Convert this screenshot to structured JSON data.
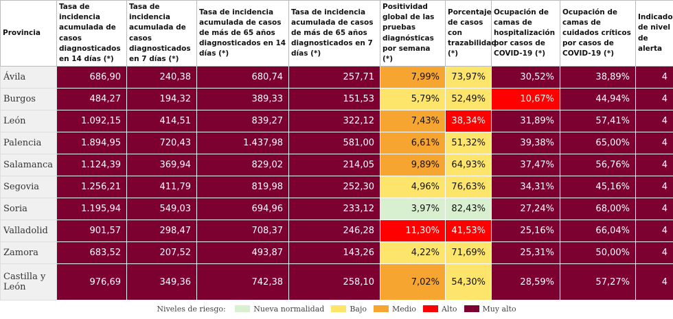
{
  "table": {
    "headers": [
      "Provincia",
      "Tasa de incidencia acumulada de casos diagnosticados en 14 días (*)",
      "Tasa de incidencia acumulada de casos diagnosticados en 7 días (*)",
      "Tasa de incidencia acumulada de casos de más de 65 años diagnosticados en 14 días (*)",
      "Tasa de incidencia acumulada de casos de más de 65 años diagnosticados en 7 días (*)",
      "Positividad global de las pruebas diagnósticas por semana (*)",
      "Porcentaje de casos con trazabilidad (*)",
      "Ocupación de camas de hospitalización por casos de COVID-19 (*)",
      "Ocupación de camas de cuidados críticos por casos de COVID-19 (*)",
      "Indicador de nivel de alerta"
    ],
    "rows": [
      {
        "province": "Ávila",
        "cells": [
          "686,90",
          "240,38",
          "680,74",
          "257,71",
          "7,99%",
          "73,97%",
          "30,52%",
          "38,89%",
          "4"
        ],
        "levels": [
          4,
          4,
          4,
          4,
          2,
          1,
          4,
          4,
          4
        ]
      },
      {
        "province": "Burgos",
        "cells": [
          "484,27",
          "194,32",
          "389,33",
          "151,53",
          "5,79%",
          "52,49%",
          "10,67%",
          "44,94%",
          "4"
        ],
        "levels": [
          4,
          4,
          4,
          4,
          1,
          1,
          3,
          4,
          4
        ]
      },
      {
        "province": "León",
        "cells": [
          "1.092,15",
          "414,51",
          "839,27",
          "322,12",
          "7,43%",
          "38,34%",
          "31,89%",
          "57,41%",
          "4"
        ],
        "levels": [
          4,
          4,
          4,
          4,
          2,
          3,
          4,
          4,
          4
        ]
      },
      {
        "province": "Palencia",
        "cells": [
          "1.894,95",
          "720,43",
          "1.437,98",
          "581,00",
          "6,61%",
          "51,32%",
          "39,38%",
          "65,00%",
          "4"
        ],
        "levels": [
          4,
          4,
          4,
          4,
          2,
          1,
          4,
          4,
          4
        ]
      },
      {
        "province": "Salamanca",
        "cells": [
          "1.124,39",
          "369,94",
          "829,02",
          "214,05",
          "9,89%",
          "64,93%",
          "37,47%",
          "56,76%",
          "4"
        ],
        "levels": [
          4,
          4,
          4,
          4,
          2,
          1,
          4,
          4,
          4
        ]
      },
      {
        "province": "Segovia",
        "cells": [
          "1.256,21",
          "411,79",
          "819,98",
          "252,30",
          "4,96%",
          "76,63%",
          "34,31%",
          "45,16%",
          "4"
        ],
        "levels": [
          4,
          4,
          4,
          4,
          1,
          1,
          4,
          4,
          4
        ]
      },
      {
        "province": "Soria",
        "cells": [
          "1.195,94",
          "549,03",
          "694,96",
          "233,12",
          "3,97%",
          "82,43%",
          "27,24%",
          "68,00%",
          "4"
        ],
        "levels": [
          4,
          4,
          4,
          4,
          0,
          0,
          4,
          4,
          4
        ]
      },
      {
        "province": "Valladolid",
        "cells": [
          "901,57",
          "298,47",
          "708,37",
          "246,28",
          "11,30%",
          "41,53%",
          "25,16%",
          "66,04%",
          "4"
        ],
        "levels": [
          4,
          4,
          4,
          4,
          3,
          3,
          4,
          4,
          4
        ]
      },
      {
        "province": "Zamora",
        "cells": [
          "683,52",
          "207,52",
          "493,87",
          "143,26",
          "4,22%",
          "71,69%",
          "25,31%",
          "50,00%",
          "4"
        ],
        "levels": [
          4,
          4,
          4,
          4,
          1,
          1,
          4,
          4,
          4
        ]
      },
      {
        "province": "Castilla y León",
        "cells": [
          "976,69",
          "349,36",
          "742,38",
          "258,10",
          "7,02%",
          "54,30%",
          "28,59%",
          "57,27%",
          "4"
        ],
        "levels": [
          4,
          4,
          4,
          4,
          2,
          1,
          4,
          4,
          4
        ]
      }
    ]
  },
  "legend": {
    "title": "Niveles de riesgo:",
    "items": [
      {
        "label": "Nueva normalidad",
        "color": "#d8f0d0"
      },
      {
        "label": "Bajo",
        "color": "#fde46a"
      },
      {
        "label": "Medio",
        "color": "#f6a531"
      },
      {
        "label": "Alto",
        "color": "#ff0000"
      },
      {
        "label": "Muy alto",
        "color": "#7c0030"
      }
    ]
  }
}
